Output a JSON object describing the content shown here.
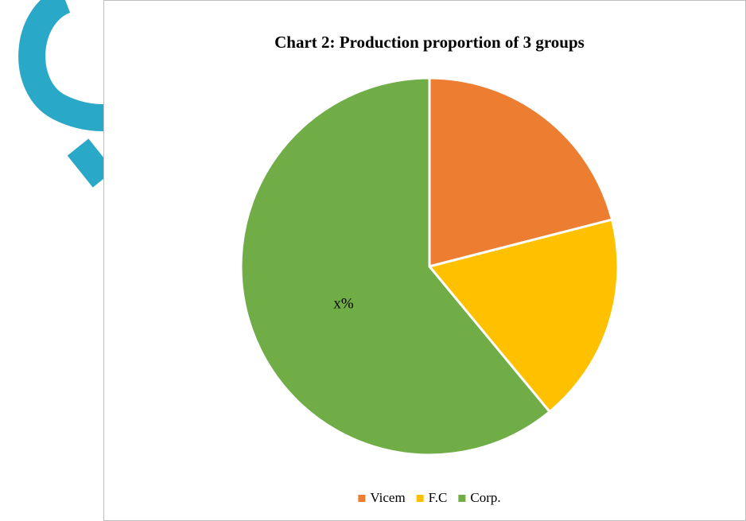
{
  "chart_data": {
    "type": "pie",
    "title": "Chart 2: Production proportion of 3 groups",
    "categories": [
      "Vicem",
      "F.C",
      "Corp."
    ],
    "values": [
      21,
      18,
      61
    ],
    "colors": [
      "#ed7d31",
      "#ffc000",
      "#70ad47"
    ],
    "annotation": "x%",
    "legend": "bottom"
  }
}
